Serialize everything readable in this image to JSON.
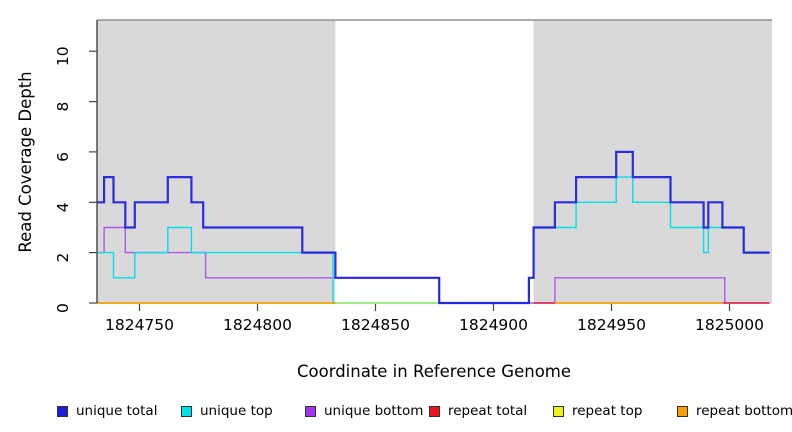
{
  "chart_data": {
    "type": "line",
    "subtype": "step-coverage-plot",
    "title": "",
    "xlabel": "Coordinate in Reference Genome",
    "ylabel": "Read Coverage Depth",
    "xlim": [
      1824732,
      1825018
    ],
    "ylim": [
      0,
      11.24
    ],
    "x_ticks": [
      1824750,
      1824800,
      1824850,
      1824900,
      1824950,
      1825000
    ],
    "y_ticks": [
      0,
      2,
      4,
      6,
      8,
      10
    ],
    "grid": false,
    "legend_position": "bottom",
    "colors": {
      "region_fill": "#d9d9d9",
      "plot_border": "#909090",
      "axis": "#444444",
      "text": "#000000"
    },
    "repeat_regions": [
      [
        1824732,
        1824833
      ],
      [
        1824917,
        1825018
      ]
    ],
    "series": [
      {
        "name": "unique-total",
        "label": "unique total",
        "color": "#1e1ee0",
        "width": 2.2,
        "opacity": 0.93,
        "z": 5,
        "steps": [
          [
            1824732,
            1824735,
            4
          ],
          [
            1824735,
            1824739,
            5
          ],
          [
            1824739,
            1824744,
            4
          ],
          [
            1824744,
            1824748,
            3
          ],
          [
            1824748,
            1824762,
            4
          ],
          [
            1824762,
            1824772,
            5
          ],
          [
            1824772,
            1824777,
            4
          ],
          [
            1824777,
            1824819,
            3
          ],
          [
            1824819,
            1824833,
            2
          ],
          [
            1824833,
            1824877,
            1
          ],
          [
            1824877,
            1824915,
            0
          ],
          [
            1824915,
            1824917,
            1
          ],
          [
            1824917,
            1824926,
            3
          ],
          [
            1824926,
            1824935,
            4
          ],
          [
            1824935,
            1824952,
            5
          ],
          [
            1824952,
            1824959,
            6
          ],
          [
            1824959,
            1824975,
            5
          ],
          [
            1824975,
            1824989,
            4
          ],
          [
            1824989,
            1824991,
            3
          ],
          [
            1824991,
            1824997,
            4
          ],
          [
            1824997,
            1825006,
            3
          ],
          [
            1825006,
            1825017,
            2
          ]
        ]
      },
      {
        "name": "unique-top",
        "label": "unique top",
        "color": "#00e1e8",
        "width": 1.4,
        "opacity": 1,
        "z": 2,
        "steps": [
          [
            1824732,
            1824739,
            2
          ],
          [
            1824739,
            1824748,
            1
          ],
          [
            1824748,
            1824762,
            2
          ],
          [
            1824762,
            1824772,
            3
          ],
          [
            1824772,
            1824832,
            2
          ],
          [
            1824832,
            1824915,
            0
          ],
          [
            1824915,
            1824917,
            1
          ],
          [
            1824917,
            1824935,
            3
          ],
          [
            1824935,
            1824952,
            4
          ],
          [
            1824952,
            1824959,
            5
          ],
          [
            1824959,
            1824975,
            4
          ],
          [
            1824975,
            1824989,
            3
          ],
          [
            1824989,
            1824991,
            2
          ],
          [
            1824991,
            1825006,
            3
          ],
          [
            1825006,
            1825017,
            2
          ]
        ]
      },
      {
        "name": "unique-bottom",
        "label": "unique bottom",
        "color": "#a134ee",
        "width": 1.4,
        "opacity": 0.8,
        "z": 1,
        "steps": [
          [
            1824732,
            1824735,
            2
          ],
          [
            1824735,
            1824744,
            3
          ],
          [
            1824744,
            1824778,
            2
          ],
          [
            1824778,
            1824877,
            1
          ],
          [
            1824877,
            1824926,
            0
          ],
          [
            1824926,
            1824998,
            1
          ],
          [
            1824998,
            1825017,
            0
          ]
        ]
      },
      {
        "name": "repeat-total",
        "label": "repeat total",
        "color": "#ee1122",
        "width": 1.4,
        "opacity": 0.85,
        "z": 4,
        "steps": [
          [
            1824917,
            1824926,
            0
          ],
          [
            1824997,
            1825017,
            0
          ]
        ]
      },
      {
        "name": "repeat-top",
        "label": "repeat top",
        "color": "#f2f218",
        "width": 1.4,
        "opacity": 0.62,
        "z": 3,
        "steps": [
          [
            1824833,
            1824877,
            0
          ]
        ]
      },
      {
        "name": "repeat-bottom",
        "label": "repeat bottom",
        "color": "#ff9e00",
        "width": 1.8,
        "opacity": 1,
        "z": 6,
        "steps": [
          [
            1824732,
            1824833,
            0
          ],
          [
            1824926,
            1824997,
            0
          ]
        ]
      }
    ]
  }
}
